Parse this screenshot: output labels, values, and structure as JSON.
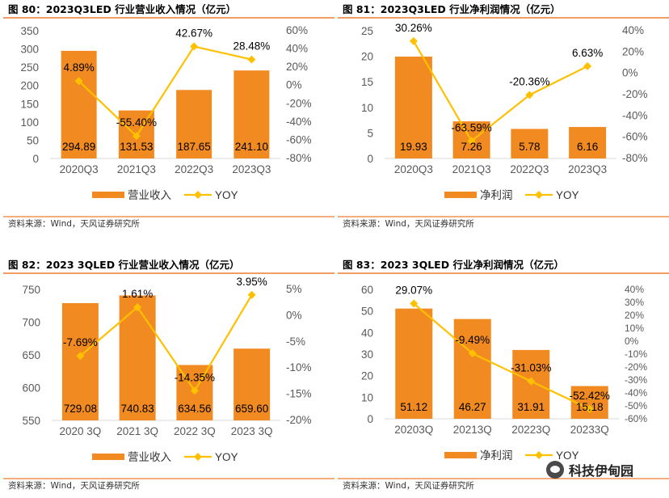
{
  "colors": {
    "bar": "#F18A21",
    "line": "#FFC000",
    "rule": "#ED7D31"
  },
  "watermark": {
    "text": "科技伊甸园",
    "icon": "wechat-icon"
  },
  "chart_data": [
    {
      "type": "bar",
      "title": "图 80：2023Q3LED 行业营业收入情况（亿元）",
      "categories": [
        "2020Q3",
        "2021Q3",
        "2022Q3",
        "2023Q3"
      ],
      "series": [
        {
          "name": "营业收入",
          "type": "bar",
          "axis": "left",
          "values": [
            294.89,
            131.53,
            187.65,
            241.1
          ],
          "labels": [
            "294.89",
            "131.53",
            "187.65",
            "241.10"
          ]
        },
        {
          "name": "YOY",
          "type": "line",
          "axis": "right",
          "values": [
            4.89,
            -55.4,
            42.67,
            28.48
          ],
          "labels": [
            "4.89%",
            "-55.40%",
            "42.67%",
            "28.48%"
          ]
        }
      ],
      "ylim": [
        0,
        350
      ],
      "yticks": [
        "0",
        "50",
        "100",
        "150",
        "200",
        "250",
        "300",
        "350"
      ],
      "y2lim": [
        -80,
        60
      ],
      "y2ticks": [
        "-80%",
        "-60%",
        "-40%",
        "-20%",
        "0%",
        "20%",
        "40%",
        "60%"
      ],
      "legend": [
        "营业收入",
        "YOY"
      ],
      "source": "资料来源：Wind，天风证券研究所"
    },
    {
      "type": "bar",
      "title": "图 81：2023Q3LED 行业净利润情况（亿元）",
      "categories": [
        "2020Q3",
        "2021Q3",
        "2022Q3",
        "2023Q3"
      ],
      "series": [
        {
          "name": "净利润",
          "type": "bar",
          "axis": "left",
          "values": [
            19.93,
            7.26,
            5.78,
            6.16
          ],
          "labels": [
            "19.93",
            "7.26",
            "5.78",
            "6.16"
          ]
        },
        {
          "name": "YOY",
          "type": "line",
          "axis": "right",
          "values": [
            30.26,
            -63.59,
            -20.36,
            6.63
          ],
          "labels": [
            "30.26%",
            "-63.59%",
            "-20.36%",
            "6.63%"
          ]
        }
      ],
      "ylim": [
        0,
        25
      ],
      "yticks": [
        "0",
        "5",
        "10",
        "15",
        "20",
        "25"
      ],
      "y2lim": [
        -80,
        40
      ],
      "y2ticks": [
        "-80%",
        "-60%",
        "-40%",
        "-20%",
        "0%",
        "20%",
        "40%"
      ],
      "legend": [
        "净利润",
        "YOY"
      ],
      "source": "资料来源：Wind，天风证券研究所"
    },
    {
      "type": "bar",
      "title": "图 82：2023 3QLED 行业营业收入情况（亿元）",
      "categories": [
        "2020 3Q",
        "2021 3Q",
        "2022 3Q",
        "2023 3Q"
      ],
      "series": [
        {
          "name": "营业收入",
          "type": "bar",
          "axis": "left",
          "values": [
            729.08,
            740.83,
            634.56,
            659.6
          ],
          "labels": [
            "729.08",
            "740.83",
            "634.56",
            "659.60"
          ]
        },
        {
          "name": "YOY",
          "type": "line",
          "axis": "right",
          "values": [
            -7.69,
            1.61,
            -14.35,
            3.95
          ],
          "labels": [
            "-7.69%",
            "1.61%",
            "-14.35%",
            "3.95%"
          ]
        }
      ],
      "ylim": [
        550,
        750
      ],
      "yticks": [
        "550",
        "600",
        "650",
        "700",
        "750"
      ],
      "y2lim": [
        -20,
        5
      ],
      "y2ticks": [
        "-20%",
        "-15%",
        "-10%",
        "-5%",
        "0%",
        "5%"
      ],
      "legend": [
        "营业收入",
        "YOY"
      ],
      "source": "资料来源：Wind，天风证券研究所"
    },
    {
      "type": "bar",
      "title": "图 83：2023 3QLED 行业净利润情况（亿元）",
      "categories": [
        "20203Q",
        "20213Q",
        "20223Q",
        "20233Q"
      ],
      "series": [
        {
          "name": "净利润",
          "type": "bar",
          "axis": "left",
          "values": [
            51.12,
            46.27,
            31.91,
            15.18
          ],
          "labels": [
            "51.12",
            "46.27",
            "31.91",
            "15.18"
          ]
        },
        {
          "name": "YOY",
          "type": "line",
          "axis": "right",
          "values": [
            29.07,
            -9.49,
            -31.03,
            -52.42
          ],
          "labels": [
            "29.07%",
            "-9.49%",
            "-31.03%",
            "-52.42%"
          ]
        }
      ],
      "ylim": [
        0,
        60
      ],
      "yticks": [
        "0",
        "10",
        "20",
        "30",
        "40",
        "50",
        "60"
      ],
      "y2lim": [
        -60,
        40
      ],
      "y2ticks": [
        "-60%",
        "-50%",
        "-40%",
        "-30%",
        "-20%",
        "-10%",
        "0%",
        "10%",
        "20%",
        "30%",
        "40%"
      ],
      "legend": [
        "净利润",
        "YOY"
      ],
      "source": "资料来源：Wind，天风证券研究所"
    }
  ]
}
